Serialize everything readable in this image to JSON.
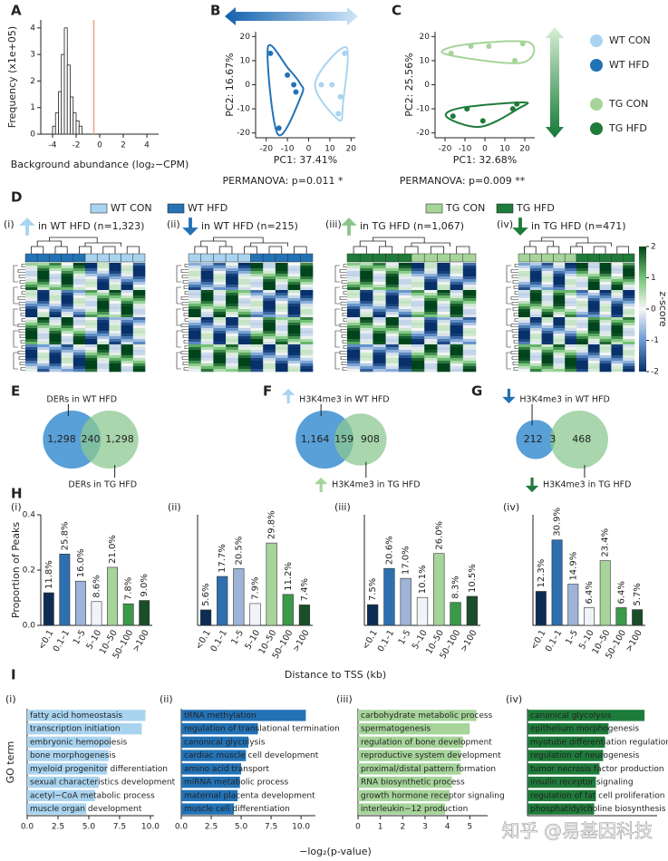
{
  "watermark": "知乎 @易基因科技",
  "chart_data": [
    {
      "type": "histogram",
      "label": "A",
      "ylabel": "Frequency (x1e+05)",
      "xlabel": "Background abundance (log₂−CPM)",
      "bins": [
        -4.0,
        -3.75,
        -3.5,
        -3.25,
        -3.0,
        -2.75,
        -2.5,
        -2.25,
        -2.0,
        -1.75,
        -1.5
      ],
      "counts": [
        0.3,
        0.8,
        1.6,
        3.0,
        4.0,
        2.6,
        1.4,
        0.8,
        0.5,
        0.3
      ],
      "color": "#ffffff",
      "vline": -0.5,
      "vline_color": "#e8a488",
      "xlim": [
        -5,
        5
      ],
      "xticks": [
        -4,
        -2,
        0,
        2,
        4
      ],
      "ylim": [
        0,
        4.3
      ],
      "yticks": [
        0,
        1,
        2,
        3,
        4
      ]
    },
    {
      "type": "scatter",
      "label": "B",
      "xlabel": "PC1: 37.41%",
      "ylabel": "PC2: 16.67%",
      "annotation": "PERMANOVA: p=0.011 *",
      "series": [
        {
          "name": "WT CON",
          "color": "#a9d4f0",
          "x": [
            6,
            11,
            15,
            17,
            14
          ],
          "values": [
            0,
            0,
            -5,
            13,
            -12
          ]
        },
        {
          "name": "WT HFD",
          "color": "#2272b6",
          "x": [
            -18,
            -10,
            -7,
            -6,
            -14
          ],
          "values": [
            13,
            4,
            0,
            -3,
            -18
          ]
        }
      ],
      "xlim": [
        -25,
        22
      ],
      "xticks": [
        -20,
        -10,
        0,
        10,
        20
      ],
      "ylim": [
        -22,
        22
      ],
      "yticks": [
        -20,
        -10,
        0,
        10,
        20
      ]
    },
    {
      "type": "scatter",
      "label": "C",
      "xlabel": "PC1: 32.68%",
      "ylabel": "PC2: 25.56%",
      "annotation": "PERMANOVA: p=0.009 **",
      "series": [
        {
          "name": "TG CON",
          "color": "#a6d49a",
          "x": [
            -17,
            -7,
            2,
            15,
            19
          ],
          "values": [
            13,
            16,
            16,
            10,
            17
          ]
        },
        {
          "name": "TG HFD",
          "color": "#1e7b3a",
          "x": [
            -16,
            -9,
            -1,
            14,
            16
          ],
          "values": [
            -13,
            -10,
            -15,
            -10,
            -8
          ]
        }
      ],
      "xlim": [
        -25,
        25
      ],
      "xticks": [
        -20,
        -10,
        0,
        10,
        20
      ],
      "ylim": [
        -22,
        22
      ],
      "yticks": [
        -20,
        -10,
        0,
        10,
        20
      ]
    },
    {
      "type": "heatmap",
      "label": "D",
      "sublabel": "(i)",
      "title": "in WT HFD (n=1,323)",
      "arrow": "up",
      "arrow_color": "#a9d4f0",
      "legend": [
        {
          "name": "WT CON",
          "color": "#a9d4f0"
        },
        {
          "name": "WT HFD",
          "color": "#2272b6"
        },
        {
          "name": "TG CON",
          "color": "#a6d49a"
        },
        {
          "name": "TG HFD",
          "color": "#1e7b3a"
        }
      ]
    },
    {
      "type": "heatmap",
      "sublabel": "(ii)",
      "title": "in WT HFD (n=215)",
      "arrow": "down",
      "arrow_color": "#2272b6"
    },
    {
      "type": "heatmap",
      "sublabel": "(iii)",
      "title": "in TG HFD (n=1,067)",
      "arrow": "up",
      "arrow_color": "#8cc48c"
    },
    {
      "type": "heatmap",
      "sublabel": "(iv)",
      "title": "in TG HFD (n=471)",
      "arrow": "down",
      "arrow_color": "#1e7b3a",
      "colorbar": {
        "label": "z-score",
        "lim": [
          -2,
          2
        ],
        "ticks": [
          -2,
          -1,
          0,
          1,
          2
        ]
      }
    },
    {
      "type": "venn",
      "label": "E",
      "sets": [
        "DERs in WT HFD",
        "DERs in TG HFD"
      ],
      "values": [
        1298,
        240,
        1298
      ],
      "value_labels": [
        "1,298",
        "240",
        "1,298"
      ],
      "colors": [
        "#3b8fd0",
        "#8cc890"
      ]
    },
    {
      "type": "venn",
      "label": "F",
      "sets": [
        "H3K4me3 in WT HFD",
        "H3K4me3 in TG HFD"
      ],
      "values": [
        1164,
        159,
        908
      ],
      "value_labels": [
        "1,164",
        "159",
        "908"
      ],
      "colors": [
        "#3b8fd0",
        "#8cc890"
      ],
      "set_arrows": [
        "up",
        "up"
      ],
      "set_arrow_colors": [
        "#a9d4f0",
        "#a6d49a"
      ]
    },
    {
      "type": "venn",
      "label": "G",
      "sets": [
        "H3K4me3 in WT HFD",
        "H3K4me3 in TG HFD"
      ],
      "values": [
        212,
        3,
        468
      ],
      "value_labels": [
        "212",
        "3",
        "468"
      ],
      "colors": [
        "#3b8fd0",
        "#8cc890"
      ],
      "set_arrows": [
        "down",
        "down"
      ],
      "set_arrow_colors": [
        "#2272b6",
        "#1e7b3a"
      ]
    },
    {
      "type": "bar",
      "label": "H",
      "sublabel": "(i)",
      "ylabel": "Proportion of Peaks",
      "xlabel": "Distance to TSS (kb)",
      "categories": [
        "<0.1",
        "0.1–1",
        "1–5",
        "5–10",
        "10–50",
        "50–100",
        ">100"
      ],
      "values": [
        0.118,
        0.258,
        0.16,
        0.086,
        0.21,
        0.078,
        0.09
      ],
      "value_labels": [
        "11.8%",
        "25.8%",
        "16.0%",
        "8.6%",
        "21.0%",
        "7.8%",
        "9.0%"
      ],
      "colors": [
        "#0d2c54",
        "#2e6fb0",
        "#9db4d8",
        "#f0f4fa",
        "#a6d49a",
        "#3a9a4a",
        "#1a4d2a"
      ],
      "ylim": [
        0,
        0.4
      ],
      "yticks": [
        {
          "value": 0,
          "label": "0.0"
        },
        0.2,
        0.4
      ]
    },
    {
      "type": "bar",
      "sublabel": "(ii)",
      "categories": [
        "<0.1",
        "0.1–1",
        "1–5",
        "5–10",
        "10–50",
        "50–100",
        ">100"
      ],
      "values": [
        0.056,
        0.177,
        0.205,
        0.079,
        0.298,
        0.112,
        0.074
      ],
      "value_labels": [
        "5.6%",
        "17.7%",
        "20.5%",
        "7.9%",
        "29.8%",
        "11.2%",
        "7.4%"
      ],
      "colors": [
        "#0d2c54",
        "#2e6fb0",
        "#9db4d8",
        "#f0f4fa",
        "#a6d49a",
        "#3a9a4a",
        "#1a4d2a"
      ],
      "ylim": [
        0,
        0.4
      ]
    },
    {
      "type": "bar",
      "sublabel": "(iii)",
      "categories": [
        "<0.1",
        "0.1–1",
        "1–5",
        "5–10",
        "10–50",
        "50–100",
        ">100"
      ],
      "values": [
        0.075,
        0.206,
        0.17,
        0.101,
        0.26,
        0.083,
        0.105
      ],
      "value_labels": [
        "7.5%",
        "20.6%",
        "17.0%",
        "10.1%",
        "26.0%",
        "8.3%",
        "10.5%"
      ],
      "colors": [
        "#0d2c54",
        "#2e6fb0",
        "#9db4d8",
        "#f0f4fa",
        "#a6d49a",
        "#3a9a4a",
        "#1a4d2a"
      ],
      "ylim": [
        0,
        0.4
      ]
    },
    {
      "type": "bar",
      "sublabel": "(iv)",
      "categories": [
        "<0.1",
        "0.1–1",
        "1–5",
        "5–10",
        "10–50",
        "50–100",
        ">100"
      ],
      "values": [
        0.123,
        0.309,
        0.149,
        0.064,
        0.234,
        0.064,
        0.057
      ],
      "value_labels": [
        "12.3%",
        "30.9%",
        "14.9%",
        "6.4%",
        "23.4%",
        "6.4%",
        "5.7%"
      ],
      "colors": [
        "#0d2c54",
        "#2e6fb0",
        "#9db4d8",
        "#f0f4fa",
        "#a6d49a",
        "#3a9a4a",
        "#1a4d2a"
      ],
      "ylim": [
        0,
        0.4
      ]
    },
    {
      "type": "barh",
      "label": "I",
      "sublabel": "(i)",
      "ylabel": "GO term",
      "xlabel": "−log₂(p-value)",
      "color": "#a9d4f0",
      "categories": [
        "fatty acid homeostasis",
        "transcription initiation",
        "embryonic hemopoiesis",
        "bone morphogenesis",
        "myeloid progenitor differentiation",
        "sexual characteristics development",
        "acetyl−CoA metabolic process",
        "muscle organ development"
      ],
      "values": [
        9.6,
        9.3,
        6.8,
        6.6,
        6.5,
        5.8,
        5.5,
        4.8
      ],
      "xlim": [
        0,
        10.3
      ],
      "xticks": [
        {
          "value": 0,
          "label": "0.0"
        },
        2.5,
        {
          "value": 5,
          "label": "5.0"
        },
        7.5,
        {
          "value": 10,
          "label": "10.0"
        }
      ]
    },
    {
      "type": "barh",
      "sublabel": "(ii)",
      "color": "#2272b6",
      "categories": [
        "tRNA methylation",
        "regulation of translational termination",
        "canonical glycolysis",
        "cardiac muscle cell development",
        "amino acid transport",
        "miRNA metabolic process",
        "maternal placenta development",
        "muscle cell differentiation"
      ],
      "values": [
        10.4,
        6.4,
        5.6,
        5.4,
        5.0,
        4.9,
        4.7,
        4.4
      ],
      "xlim": [
        0,
        11.2
      ],
      "xticks": [
        {
          "value": 0,
          "label": "0.0"
        },
        2.5,
        {
          "value": 5,
          "label": "5.0"
        },
        7.5,
        {
          "value": 10,
          "label": "10.0"
        }
      ]
    },
    {
      "type": "barh",
      "sublabel": "(iii)",
      "color": "#a6d49a",
      "categories": [
        "carbohydrate metabolic process",
        "spermatogenesis",
        "regulation of bone development",
        "reproductive system development",
        "proximal/distal pattern formation",
        "RNA biosynthetic process",
        "growth hormone receptor signaling",
        "interleukin−12 production"
      ],
      "values": [
        5.3,
        5.0,
        4.7,
        4.6,
        4.6,
        4.2,
        4.1,
        3.9
      ],
      "xlim": [
        0,
        5.8
      ],
      "xticks": [
        0,
        1,
        2,
        3,
        4,
        5
      ]
    },
    {
      "type": "barh",
      "sublabel": "(iv)",
      "color": "#1e7b3a",
      "categories": [
        "canonical glycolysis",
        "epithelium morphogenesis",
        "myotube differentiation regulation",
        "regulation of neurogenesis",
        "tumor necrosis factor production",
        "insulin receptor signaling",
        "regulation of fat cell proliferation",
        "phosphatidylcholine biosynthesis"
      ],
      "values": [
        6.5,
        4.5,
        4.3,
        4.2,
        4.0,
        3.8,
        3.8,
        3.7
      ],
      "xlim": [
        0,
        7.2
      ]
    }
  ]
}
